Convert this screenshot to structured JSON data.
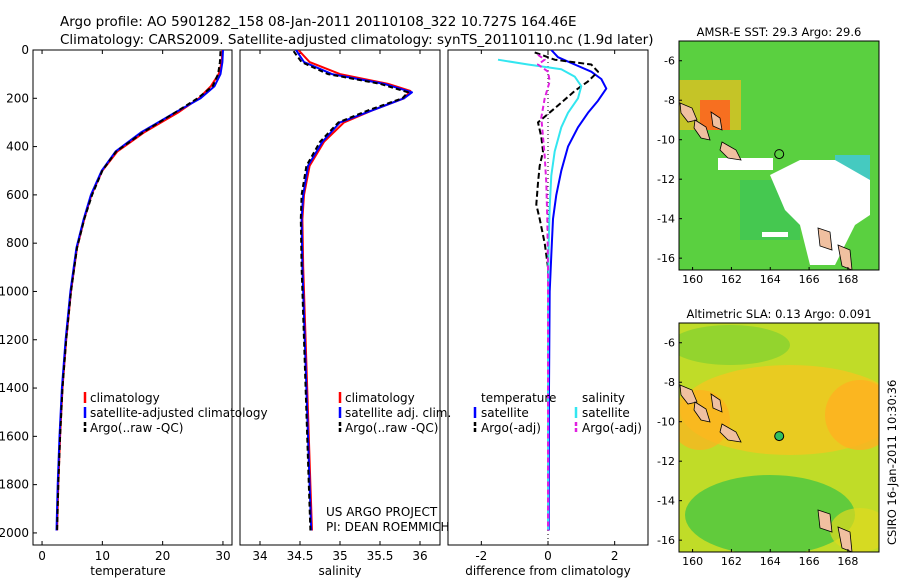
{
  "header": {
    "line1": "Argo profile: AO 5901282_158 08-Jan-2011 20110108_322 10.727S 164.46E",
    "line2": "Climatology: CARS2009. Satellite-adjusted climatology: synTS_20110110.nc (1.9d later)"
  },
  "colors": {
    "climatology": "#ff0000",
    "satellite": "#0000ff",
    "argo": "#000000",
    "salinity_satellite": "#33e6f0",
    "salinity_argo": "#e020e0",
    "land": "#f0c0a0"
  },
  "side_labels": {
    "project": "US ARGO PROJECT",
    "pi": "PI: DEAN ROEMMICH",
    "stamp": "CSIRO 16-Jan-2011 10:30:36"
  },
  "chart_data": [
    {
      "type": "line",
      "id": "temperature",
      "xlabel": "temperature",
      "ylabel": "",
      "xlim": [
        -1.5,
        31.5
      ],
      "ylim": [
        2050,
        0
      ],
      "xticks": [
        0,
        10,
        20,
        30
      ],
      "yticks": [
        0,
        200,
        400,
        600,
        800,
        1000,
        1200,
        1400,
        1600,
        1800,
        2000
      ],
      "legend": "lower-left",
      "series": [
        {
          "name": "climatology",
          "color": "#ff0000",
          "dash": "",
          "points": [
            [
              29.9,
              0
            ],
            [
              29.8,
              50
            ],
            [
              29.3,
              100
            ],
            [
              28.0,
              150
            ],
            [
              26.0,
              200
            ],
            [
              22.5,
              260
            ],
            [
              17.0,
              340
            ],
            [
              12.5,
              420
            ],
            [
              10.0,
              500
            ],
            [
              8.2,
              600
            ],
            [
              7.0,
              700
            ],
            [
              5.8,
              820
            ],
            [
              4.8,
              1000
            ],
            [
              4.0,
              1200
            ],
            [
              3.4,
              1400
            ],
            [
              3.0,
              1600
            ],
            [
              2.7,
              1800
            ],
            [
              2.5,
              1990
            ]
          ]
        },
        {
          "name": "satellite-adjusted climatology",
          "color": "#0000ff",
          "dash": "",
          "points": [
            [
              30.0,
              0
            ],
            [
              29.9,
              50
            ],
            [
              29.6,
              100
            ],
            [
              28.6,
              150
            ],
            [
              26.3,
              200
            ],
            [
              22.0,
              260
            ],
            [
              16.5,
              340
            ],
            [
              12.2,
              420
            ],
            [
              9.9,
              500
            ],
            [
              8.1,
              600
            ],
            [
              6.9,
              700
            ],
            [
              5.7,
              820
            ],
            [
              4.7,
              1000
            ],
            [
              3.9,
              1200
            ],
            [
              3.3,
              1400
            ],
            [
              2.9,
              1600
            ],
            [
              2.6,
              1800
            ],
            [
              2.4,
              1990
            ]
          ]
        },
        {
          "name": "Argo(..raw -QC)",
          "color": "#000000",
          "dash": "5,3",
          "points": [
            [
              29.6,
              5
            ],
            [
              29.5,
              50
            ],
            [
              29.2,
              100
            ],
            [
              28.3,
              150
            ],
            [
              25.8,
              200
            ],
            [
              22.0,
              260
            ],
            [
              16.8,
              340
            ],
            [
              12.3,
              420
            ],
            [
              10.0,
              500
            ],
            [
              8.3,
              600
            ],
            [
              7.0,
              700
            ],
            [
              5.8,
              820
            ],
            [
              4.8,
              1000
            ],
            [
              4.0,
              1200
            ],
            [
              3.4,
              1400
            ],
            [
              3.0,
              1600
            ],
            [
              2.7,
              1800
            ],
            [
              2.5,
              1990
            ]
          ]
        }
      ]
    },
    {
      "type": "line",
      "id": "salinity",
      "xlabel": "salinity",
      "ylabel": "",
      "xlim": [
        33.75,
        36.25
      ],
      "ylim": [
        2050,
        0
      ],
      "xticks": [
        34,
        34.5,
        35,
        35.5,
        36
      ],
      "xticklabels": [
        "34",
        "34.5",
        "35",
        "35.5",
        "36"
      ],
      "legend": "lower-left",
      "series": [
        {
          "name": "climatology",
          "color": "#ff0000",
          "dash": "",
          "points": [
            [
              34.48,
              0
            ],
            [
              34.62,
              50
            ],
            [
              35.0,
              100
            ],
            [
              35.6,
              140
            ],
            [
              35.88,
              170
            ],
            [
              35.8,
              200
            ],
            [
              35.4,
              250
            ],
            [
              35.05,
              300
            ],
            [
              34.8,
              380
            ],
            [
              34.62,
              480
            ],
            [
              34.55,
              600
            ],
            [
              34.53,
              700
            ],
            [
              34.54,
              900
            ],
            [
              34.57,
              1200
            ],
            [
              34.6,
              1500
            ],
            [
              34.63,
              1800
            ],
            [
              34.65,
              1990
            ]
          ]
        },
        {
          "name": "satellite adj. clim.",
          "color": "#0000ff",
          "dash": "",
          "points": [
            [
              34.45,
              0
            ],
            [
              34.55,
              50
            ],
            [
              34.9,
              100
            ],
            [
              35.55,
              140
            ],
            [
              35.9,
              175
            ],
            [
              35.8,
              200
            ],
            [
              35.4,
              250
            ],
            [
              35.0,
              300
            ],
            [
              34.78,
              380
            ],
            [
              34.6,
              480
            ],
            [
              34.54,
              600
            ],
            [
              34.52,
              700
            ],
            [
              34.53,
              900
            ],
            [
              34.56,
              1200
            ],
            [
              34.59,
              1500
            ],
            [
              34.62,
              1800
            ],
            [
              34.64,
              1990
            ]
          ]
        },
        {
          "name": "Argo(..raw -QC)",
          "color": "#000000",
          "dash": "5,3",
          "points": [
            [
              34.42,
              5
            ],
            [
              34.52,
              50
            ],
            [
              34.85,
              100
            ],
            [
              35.5,
              140
            ],
            [
              35.85,
              175
            ],
            [
              35.78,
              200
            ],
            [
              35.35,
              250
            ],
            [
              34.98,
              300
            ],
            [
              34.75,
              380
            ],
            [
              34.58,
              480
            ],
            [
              34.52,
              600
            ],
            [
              34.51,
              700
            ],
            [
              34.52,
              900
            ],
            [
              34.55,
              1200
            ],
            [
              34.58,
              1500
            ],
            [
              34.61,
              1800
            ],
            [
              34.63,
              1990
            ]
          ]
        }
      ]
    },
    {
      "type": "line",
      "id": "difference",
      "xlabel": "difference from climatology",
      "ylabel": "",
      "xlim": [
        -3.0,
        3.0
      ],
      "ylim": [
        2050,
        0
      ],
      "xticks": [
        -2,
        0,
        2
      ],
      "legend": "lower-center",
      "legend_headers": [
        "temperature",
        "salinity"
      ],
      "series": [
        {
          "name": "satellite",
          "group": "temperature",
          "color": "#0000ff",
          "dash": "",
          "points": [
            [
              0.1,
              0
            ],
            [
              0.3,
              30
            ],
            [
              0.8,
              60
            ],
            [
              1.3,
              90
            ],
            [
              1.6,
              120
            ],
            [
              1.75,
              160
            ],
            [
              1.5,
              210
            ],
            [
              1.2,
              260
            ],
            [
              0.9,
              320
            ],
            [
              0.6,
              400
            ],
            [
              0.4,
              500
            ],
            [
              0.25,
              600
            ],
            [
              0.15,
              700
            ],
            [
              0.1,
              850
            ],
            [
              0.05,
              1000
            ],
            [
              0.03,
              1400
            ],
            [
              0.02,
              1990
            ]
          ]
        },
        {
          "name": "Argo(-adj)",
          "group": "temperature",
          "color": "#000000",
          "dash": "6,3",
          "points": [
            [
              -0.4,
              10
            ],
            [
              0.2,
              40
            ],
            [
              1.3,
              60
            ],
            [
              1.5,
              90
            ],
            [
              1.2,
              130
            ],
            [
              0.8,
              170
            ],
            [
              0.3,
              230
            ],
            [
              -0.3,
              300
            ],
            [
              -0.2,
              360
            ],
            [
              -0.15,
              420
            ],
            [
              -0.25,
              480
            ],
            [
              -0.3,
              550
            ],
            [
              -0.35,
              640
            ],
            [
              -0.25,
              700
            ],
            [
              -0.1,
              800
            ],
            [
              0.0,
              900
            ],
            [
              0.0,
              1400
            ],
            [
              0.0,
              1990
            ]
          ]
        },
        {
          "name": "satellite",
          "group": "salinity",
          "color": "#33e6f0",
          "dash": "",
          "points": [
            [
              -1.5,
              40
            ],
            [
              -0.6,
              60
            ],
            [
              0.4,
              80
            ],
            [
              0.8,
              110
            ],
            [
              1.0,
              150
            ],
            [
              0.9,
              200
            ],
            [
              0.6,
              260
            ],
            [
              0.4,
              320
            ],
            [
              0.2,
              420
            ],
            [
              0.1,
              520
            ],
            [
              0.05,
              650
            ],
            [
              0.02,
              800
            ],
            [
              0.0,
              1000
            ],
            [
              0.0,
              1990
            ]
          ]
        },
        {
          "name": "Argo(-adj)",
          "group": "salinity",
          "color": "#e020e0",
          "dash": "5,3",
          "points": [
            [
              -0.3,
              20
            ],
            [
              -0.1,
              40
            ],
            [
              -0.3,
              60
            ],
            [
              0.0,
              90
            ],
            [
              0.05,
              130
            ],
            [
              -0.1,
              200
            ],
            [
              -0.2,
              280
            ],
            [
              -0.15,
              360
            ],
            [
              -0.1,
              440
            ],
            [
              -0.05,
              550
            ],
            [
              -0.02,
              700
            ],
            [
              0.0,
              900
            ],
            [
              0.0,
              1990
            ]
          ]
        }
      ]
    }
  ],
  "maps": [
    {
      "id": "sst",
      "title": "AMSR-E SST: 29.3 Argo: 29.6",
      "xlim": [
        159.3,
        169.6
      ],
      "ylim": [
        -16.6,
        -5.0
      ],
      "xticks": [
        160,
        162,
        164,
        166,
        168
      ],
      "yticks": [
        -6,
        -8,
        -10,
        -12,
        -14,
        -16
      ],
      "yticklabels": [
        "-6",
        "-8",
        "-10",
        "-12",
        "-14",
        "-16"
      ],
      "argo_position": [
        164.46,
        -10.727
      ],
      "colors": [
        "#30d060",
        "#5ad040",
        "#80d030",
        "#a8d830",
        "#e0c020",
        "#ff8020",
        "#ff4020",
        "#40c8e0"
      ]
    },
    {
      "id": "sla",
      "title": "Altimetric SLA: 0.13 Argo: 0.091",
      "xlim": [
        159.3,
        169.6
      ],
      "ylim": [
        -16.6,
        -5.0
      ],
      "xticks": [
        160,
        162,
        164,
        166,
        168
      ],
      "yticks": [
        -6,
        -8,
        -10,
        -12,
        -14,
        -16
      ],
      "yticklabels": [
        "-6",
        "-8",
        "-10",
        "-12",
        "-14",
        "-16"
      ],
      "argo_position": [
        164.46,
        -10.727
      ],
      "colors": [
        "#50c840",
        "#80d030",
        "#b0d828",
        "#d8e020",
        "#f0c820",
        "#ffb020"
      ]
    }
  ]
}
